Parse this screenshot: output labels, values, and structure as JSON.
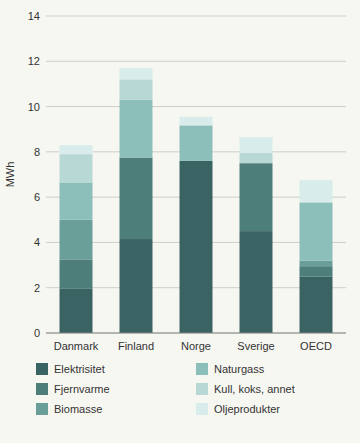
{
  "chart_data": {
    "type": "bar",
    "stacked": true,
    "ylabel": "MWh",
    "categories": [
      "Danmark",
      "Finland",
      "Norge",
      "Sverige",
      "OECD"
    ],
    "series": [
      {
        "name": "Elektrisitet",
        "color": "#3a6363",
        "values": [
          1.95,
          4.15,
          7.6,
          4.5,
          2.5
        ]
      },
      {
        "name": "Fjernvarme",
        "color": "#4e7e7a",
        "values": [
          1.3,
          3.6,
          0.0,
          3.0,
          0.45
        ]
      },
      {
        "name": "Biomasse",
        "color": "#6a9e99",
        "values": [
          1.75,
          0.0,
          0.0,
          0.0,
          0.25
        ]
      },
      {
        "name": "Naturgass",
        "color": "#8cbfba",
        "values": [
          1.65,
          2.55,
          1.55,
          0.0,
          2.55
        ]
      },
      {
        "name": "Kull, koks, annet",
        "color": "#b8d8d5",
        "values": [
          1.25,
          0.9,
          0.05,
          0.45,
          0.05
        ]
      },
      {
        "name": "Oljeprodukter",
        "color": "#d8edeb",
        "values": [
          0.4,
          0.5,
          0.35,
          0.7,
          0.95
        ]
      }
    ],
    "ylim": [
      0,
      14
    ],
    "yticks": [
      0,
      2,
      4,
      6,
      8,
      10,
      12,
      14
    ],
    "grid": true,
    "legend": "bottom"
  }
}
